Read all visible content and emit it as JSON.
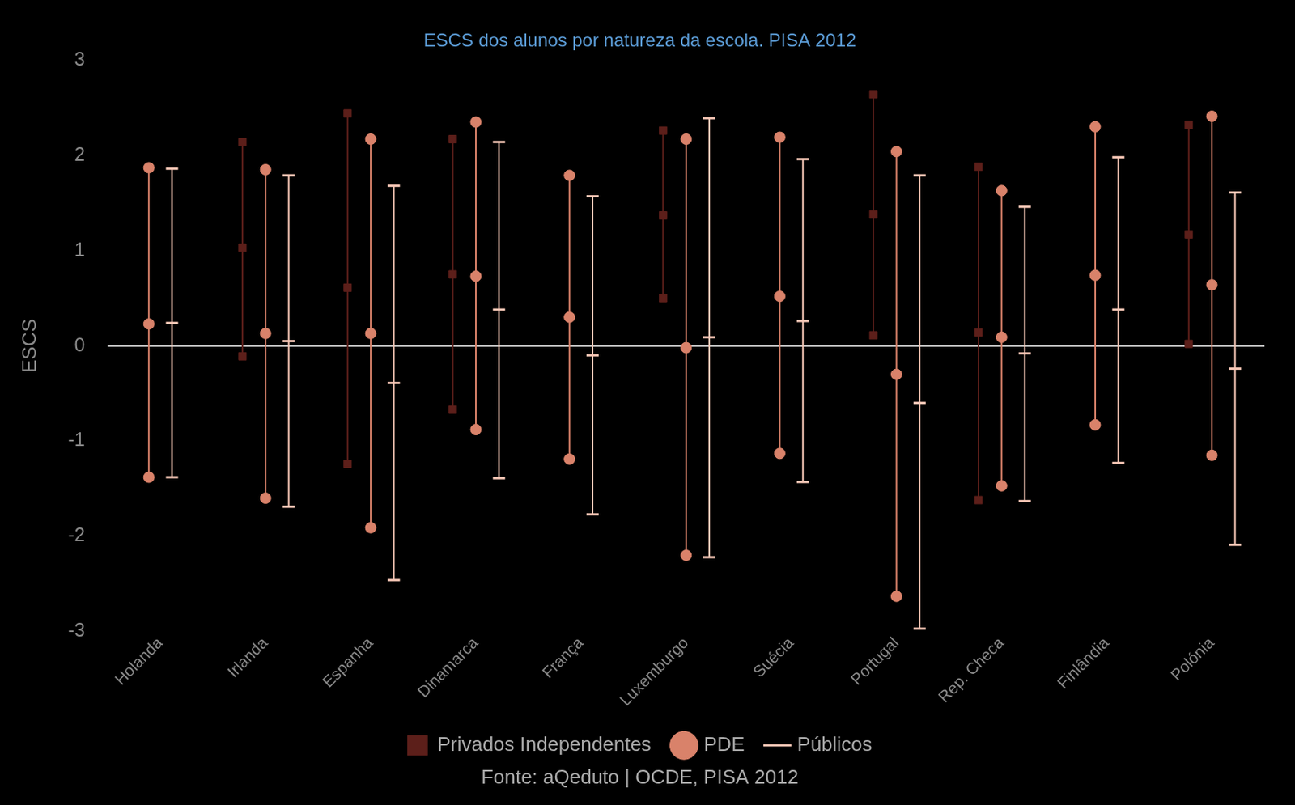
{
  "chart_data": {
    "type": "range",
    "title": "ESCS dos alunos por natureza da escola. PISA 2012",
    "source": "Fonte: aQeduto | OCDE, PISA 2012",
    "y_label": "ESCS",
    "categories": [
      "Holanda",
      "Irlanda",
      "Espanha",
      "Dinamarca",
      "França",
      "Luxemburgo",
      "Suécia",
      "Portugal",
      "Rep. Checa",
      "Finlândia",
      "Polónia"
    ],
    "ylim": [
      -3,
      3
    ],
    "yticks": [
      -3,
      -2,
      -1,
      0,
      1,
      2,
      3
    ],
    "grid": false,
    "legend": "bottom",
    "series": [
      {
        "name": "Privados Independentes",
        "color": "#5c1f1a",
        "marker": "square",
        "values": [
          null,
          1.03,
          0.61,
          0.75,
          null,
          1.37,
          null,
          1.38,
          0.14,
          null,
          1.17
        ],
        "low": [
          null,
          -0.11,
          -1.24,
          -0.67,
          null,
          0.5,
          null,
          0.11,
          -1.62,
          null,
          0.02
        ],
        "high": [
          null,
          2.14,
          2.44,
          2.17,
          null,
          2.26,
          null,
          2.64,
          1.88,
          null,
          2.32
        ]
      },
      {
        "name": "PDE",
        "color": "#d9826a",
        "marker": "circle",
        "values": [
          0.23,
          0.13,
          0.13,
          0.73,
          0.3,
          -0.02,
          0.52,
          -0.3,
          0.09,
          0.74,
          0.64
        ],
        "low": [
          -1.38,
          -1.6,
          -1.91,
          -0.88,
          -1.19,
          -2.2,
          -1.13,
          -2.63,
          -1.47,
          -0.83,
          -1.15
        ],
        "high": [
          1.87,
          1.85,
          2.17,
          2.35,
          1.79,
          2.17,
          2.19,
          2.04,
          1.63,
          2.3,
          2.41
        ]
      },
      {
        "name": "Públicos",
        "color": "#f6c7b6",
        "marker": "line",
        "values": [
          0.24,
          0.05,
          -0.39,
          0.38,
          -0.1,
          0.09,
          0.26,
          -0.6,
          -0.08,
          0.38,
          -0.24
        ],
        "low": [
          -1.38,
          -1.69,
          -2.46,
          -1.39,
          -1.77,
          -2.22,
          -1.43,
          -2.97,
          -1.63,
          -1.23,
          -2.09
        ],
        "high": [
          1.86,
          1.79,
          1.68,
          2.14,
          1.57,
          2.39,
          1.96,
          1.79,
          1.46,
          1.98,
          1.61
        ]
      }
    ]
  }
}
